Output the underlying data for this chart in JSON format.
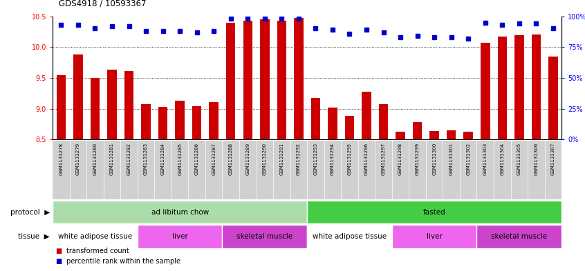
{
  "title": "GDS4918 / 10593367",
  "samples": [
    "GSM1131278",
    "GSM1131279",
    "GSM1131280",
    "GSM1131281",
    "GSM1131282",
    "GSM1131283",
    "GSM1131284",
    "GSM1131285",
    "GSM1131286",
    "GSM1131287",
    "GSM1131288",
    "GSM1131289",
    "GSM1131290",
    "GSM1131291",
    "GSM1131292",
    "GSM1131293",
    "GSM1131294",
    "GSM1131295",
    "GSM1131296",
    "GSM1131297",
    "GSM1131298",
    "GSM1131299",
    "GSM1131300",
    "GSM1131301",
    "GSM1131302",
    "GSM1131303",
    "GSM1131304",
    "GSM1131305",
    "GSM1131306",
    "GSM1131307"
  ],
  "bar_values": [
    9.55,
    9.88,
    9.5,
    9.63,
    9.61,
    9.08,
    9.03,
    9.13,
    9.04,
    9.11,
    10.4,
    10.43,
    10.45,
    10.43,
    10.47,
    9.18,
    9.02,
    8.88,
    9.28,
    9.08,
    8.63,
    8.78,
    8.64,
    8.65,
    8.63,
    10.07,
    10.17,
    10.19,
    10.2,
    9.85
  ],
  "percentile_values": [
    93,
    93,
    90,
    92,
    92,
    88,
    88,
    88,
    87,
    88,
    98,
    98,
    98,
    98,
    98,
    90,
    89,
    86,
    89,
    87,
    83,
    84,
    83,
    83,
    82,
    95,
    93,
    94,
    94,
    90
  ],
  "ylim_left": [
    8.5,
    10.5
  ],
  "ylim_right": [
    0,
    100
  ],
  "bar_color": "#cc0000",
  "dot_color": "#0000cc",
  "chart_bg": "#ffffff",
  "label_bg": "#d0d0d0",
  "protocol_groups": [
    {
      "label": "ad libitum chow",
      "start": 0,
      "end": 15,
      "color": "#aaddaa"
    },
    {
      "label": "fasted",
      "start": 15,
      "end": 30,
      "color": "#44cc44"
    }
  ],
  "tissue_groups": [
    {
      "label": "white adipose tissue",
      "start": 0,
      "end": 5,
      "color": "#ffffff"
    },
    {
      "label": "liver",
      "start": 5,
      "end": 10,
      "color": "#ee66ee"
    },
    {
      "label": "skeletal muscle",
      "start": 10,
      "end": 15,
      "color": "#cc44cc"
    },
    {
      "label": "white adipose tissue",
      "start": 15,
      "end": 20,
      "color": "#ffffff"
    },
    {
      "label": "liver",
      "start": 20,
      "end": 25,
      "color": "#ee66ee"
    },
    {
      "label": "skeletal muscle",
      "start": 25,
      "end": 30,
      "color": "#cc44cc"
    }
  ],
  "bar_width": 0.55,
  "left_yticks": [
    8.5,
    9.0,
    9.5,
    10.0,
    10.5
  ],
  "right_yticks": [
    0,
    25,
    50,
    75,
    100
  ],
  "right_yticklabels": [
    "0%",
    "25%",
    "50%",
    "75%",
    "100%"
  ],
  "grid_lines": [
    9.0,
    9.5,
    10.0
  ],
  "protocol_label": "protocol",
  "tissue_label": "tissue",
  "legend": [
    {
      "label": "transformed count",
      "color": "#cc0000"
    },
    {
      "label": "percentile rank within the sample",
      "color": "#0000cc"
    }
  ]
}
